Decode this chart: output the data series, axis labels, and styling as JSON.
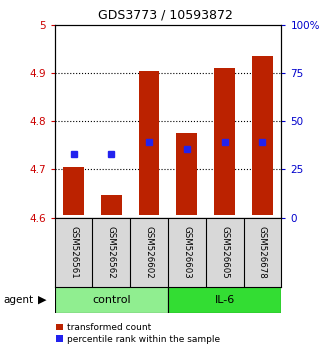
{
  "title": "GDS3773 / 10593872",
  "samples": [
    "GSM526561",
    "GSM526562",
    "GSM526602",
    "GSM526603",
    "GSM526605",
    "GSM526678"
  ],
  "bar_bottoms": [
    4.605,
    4.605,
    4.605,
    4.605,
    4.605,
    4.605
  ],
  "bar_tops": [
    4.705,
    4.647,
    4.905,
    4.775,
    4.91,
    4.935
  ],
  "percentile_values": [
    4.732,
    4.732,
    4.757,
    4.743,
    4.757,
    4.757
  ],
  "bar_color": "#bb2200",
  "percentile_color": "#2222ee",
  "ylim_left": [
    4.6,
    5.0
  ],
  "ylim_right": [
    0,
    100
  ],
  "yticks_left": [
    4.6,
    4.7,
    4.8,
    4.9,
    5.0
  ],
  "ytick_labels_left": [
    "4.6",
    "4.7",
    "4.8",
    "4.9",
    "5"
  ],
  "yticks_right": [
    0,
    25,
    50,
    75,
    100
  ],
  "ytick_labels_right": [
    "0",
    "25",
    "50",
    "75",
    "100%"
  ],
  "group_colors_control": "#90ee90",
  "group_colors_il6": "#33dd33",
  "bar_width": 0.55
}
